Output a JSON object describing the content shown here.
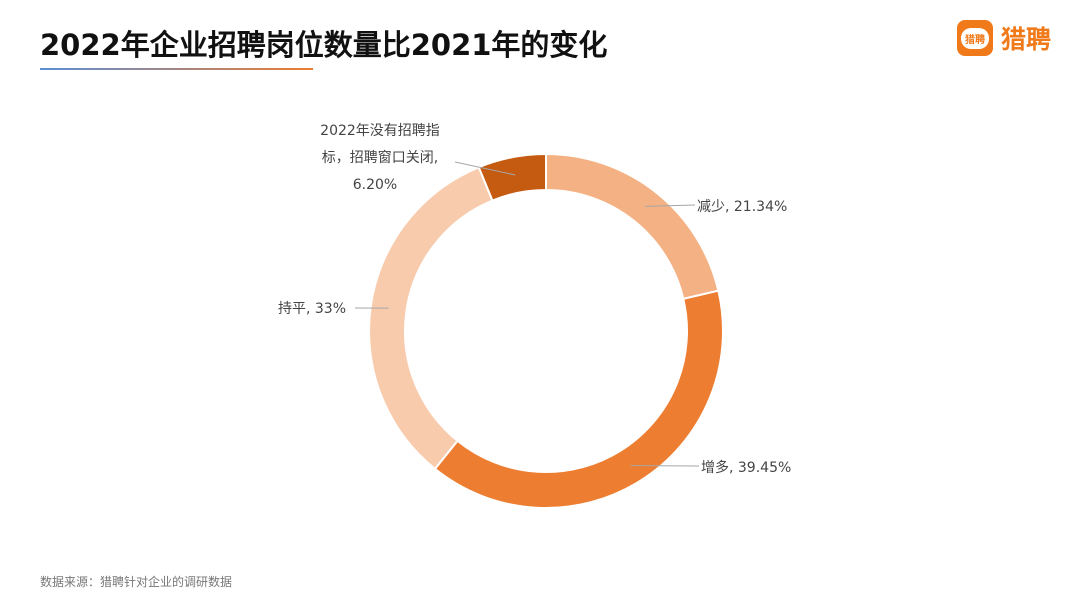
{
  "header": {
    "title": "2022年企业招聘岗位数量比2021年的变化",
    "logo_text": "猎聘",
    "logo_icon_text": "猎聘"
  },
  "footer": {
    "source": "数据来源：猎聘针对企业的调研数据"
  },
  "chart_data": {
    "type": "pie",
    "donut": true,
    "start": "top, clockwise",
    "slices": [
      {
        "label": "减少",
        "value": 21.34,
        "display": "减少, 21.34%",
        "color": "#F4B183"
      },
      {
        "label": "增多",
        "value": 39.45,
        "display": "增多, 39.45%",
        "color": "#ED7D31"
      },
      {
        "label": "持平",
        "value": 33,
        "display": "持平, 33%",
        "color": "#F8CBAD"
      },
      {
        "label": "2022年没有招聘指标，招聘窗口关闭",
        "value": 6.2,
        "display_lines": [
          "2022年没有招聘指",
          "标，招聘窗口关闭,",
          "6.20%"
        ],
        "color": "#C55A11"
      }
    ],
    "legend": "none"
  }
}
